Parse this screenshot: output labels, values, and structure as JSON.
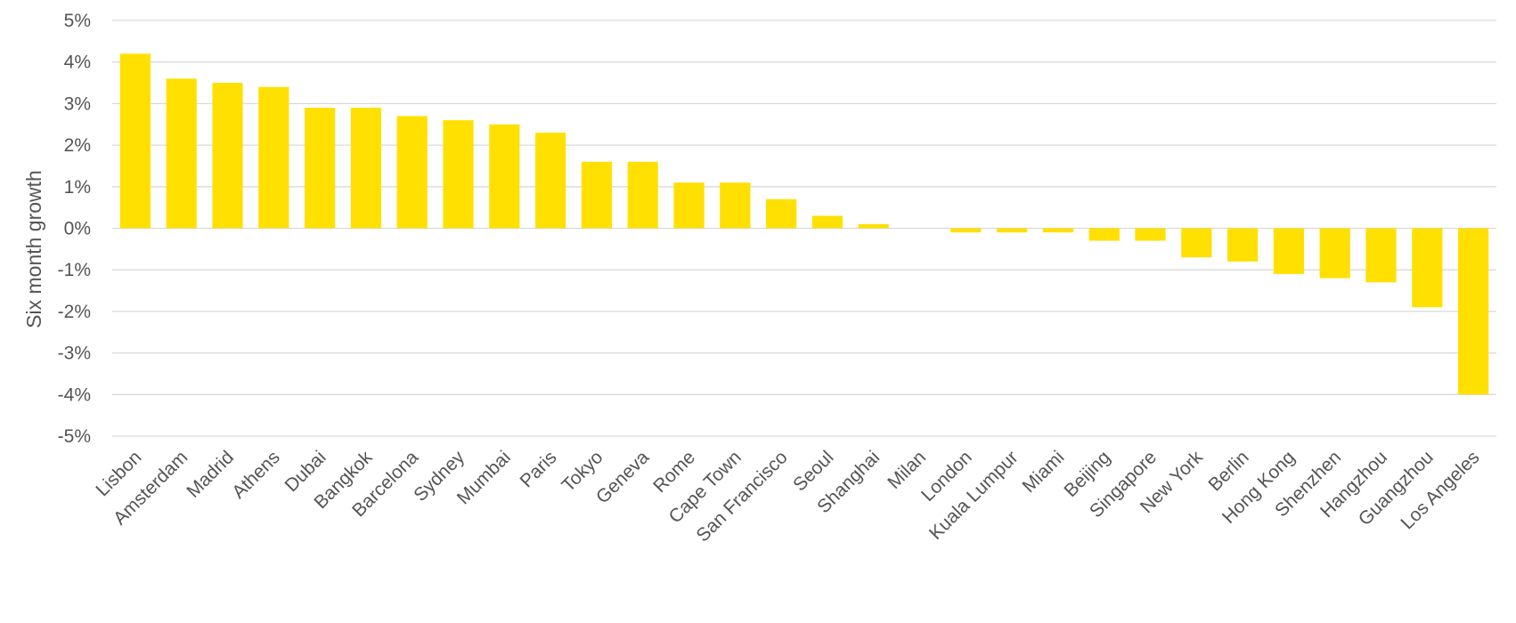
{
  "chart_data": {
    "type": "bar",
    "title": "",
    "xlabel": "",
    "ylabel": "Six month growth",
    "ylim": [
      -5,
      5
    ],
    "y_tick_step": 1,
    "y_tick_labels": [
      "5%",
      "4%",
      "3%",
      "2%",
      "1%",
      "0%",
      "-1%",
      "-2%",
      "-3%",
      "-4%",
      "-5%"
    ],
    "grid": true,
    "legend": "none",
    "bar_color": "#FFE000",
    "categories": [
      "Lisbon",
      "Amsterdam",
      "Madrid",
      "Athens",
      "Dubai",
      "Bangkok",
      "Barcelona",
      "Sydney",
      "Mumbai",
      "Paris",
      "Tokyo",
      "Geneva",
      "Rome",
      "Cape Town",
      "San Francisco",
      "Seoul",
      "Shanghai",
      "Milan",
      "London",
      "Kuala Lumpur",
      "Miami",
      "Beijing",
      "Singapore",
      "New York",
      "Berlin",
      "Hong Kong",
      "Shenzhen",
      "Hangzhou",
      "Guangzhou",
      "Los Angeles"
    ],
    "values": [
      4.2,
      3.6,
      3.5,
      3.4,
      2.9,
      2.9,
      2.7,
      2.6,
      2.5,
      2.3,
      1.6,
      1.6,
      1.1,
      1.1,
      0.7,
      0.3,
      0.1,
      0.0,
      -0.1,
      -0.1,
      -0.1,
      -0.3,
      -0.3,
      -0.7,
      -0.8,
      -1.1,
      -1.2,
      -1.3,
      -1.9,
      -4.0
    ]
  }
}
